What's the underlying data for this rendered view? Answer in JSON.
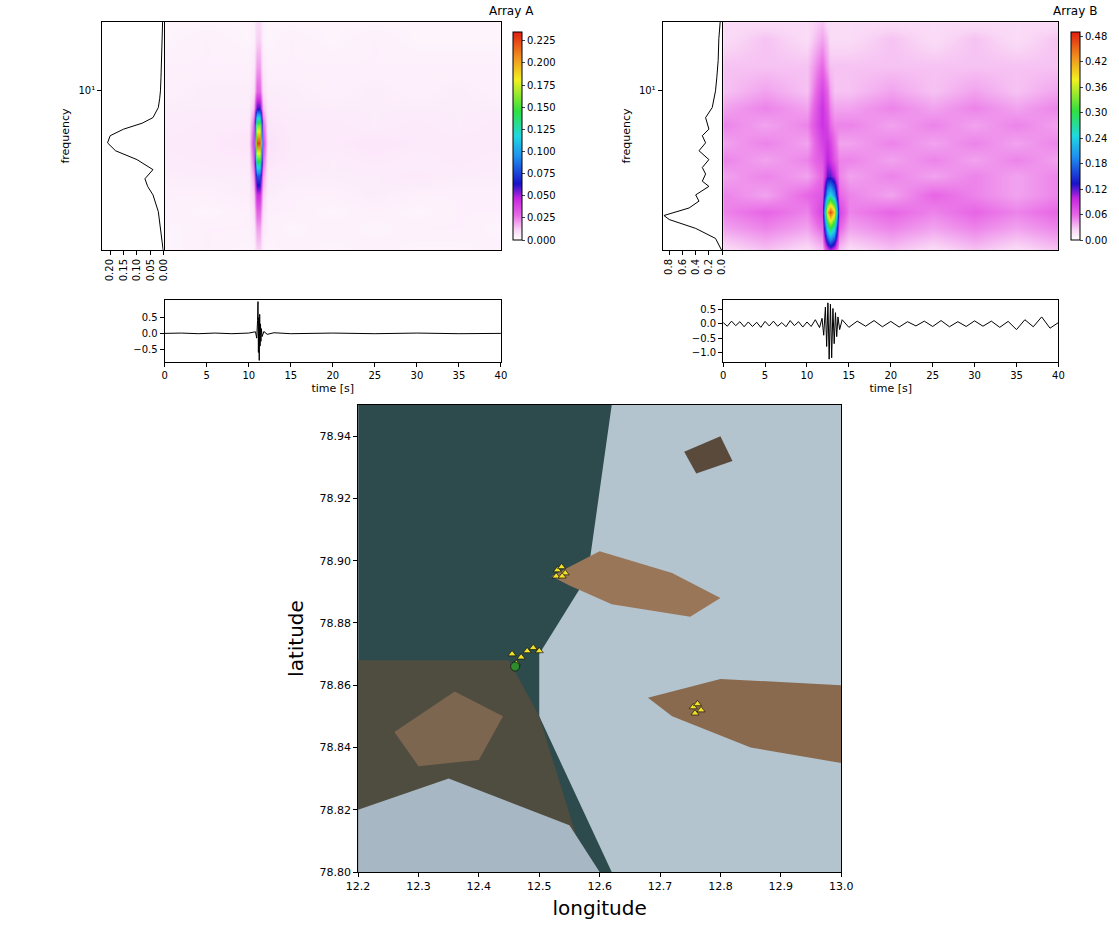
{
  "chart_data": [
    {
      "type": "spectrogram",
      "title": "Array A",
      "ylabel": "frequency",
      "log": "y",
      "ylim": [
        1.2,
        25
      ],
      "yticks": [
        {
          "value": 10,
          "label": "10¹"
        }
      ],
      "heatmap": {
        "x": [
          0,
          5,
          10,
          10.6,
          11,
          11.3,
          11.6,
          12.2,
          15,
          20,
          25,
          30,
          35,
          40
        ],
        "y": [
          1.2,
          1.6,
          2,
          2.5,
          3.2,
          4,
          5,
          6.3,
          8,
          10,
          14,
          20,
          25
        ],
        "z": [
          [
            0.003,
            0.004,
            0.003,
            0.004,
            0.012,
            0.012,
            0.004,
            0.003,
            0.004,
            0.003,
            0.004,
            0.003,
            0.003,
            0.004
          ],
          [
            0.003,
            0.004,
            0.004,
            0.006,
            0.02,
            0.02,
            0.006,
            0.004,
            0.003,
            0.004,
            0.003,
            0.004,
            0.004,
            0.003
          ],
          [
            0.004,
            0.003,
            0.004,
            0.008,
            0.03,
            0.03,
            0.008,
            0.004,
            0.004,
            0.003,
            0.004,
            0.003,
            0.004,
            0.004
          ],
          [
            0.004,
            0.004,
            0.005,
            0.012,
            0.045,
            0.045,
            0.012,
            0.005,
            0.004,
            0.004,
            0.005,
            0.004,
            0.004,
            0.004
          ],
          [
            0.005,
            0.005,
            0.005,
            0.02,
            0.08,
            0.08,
            0.02,
            0.006,
            0.005,
            0.005,
            0.005,
            0.006,
            0.005,
            0.005
          ],
          [
            0.005,
            0.006,
            0.006,
            0.03,
            0.15,
            0.15,
            0.03,
            0.007,
            0.006,
            0.005,
            0.006,
            0.005,
            0.006,
            0.005
          ],
          [
            0.006,
            0.006,
            0.007,
            0.04,
            0.225,
            0.225,
            0.04,
            0.008,
            0.006,
            0.006,
            0.007,
            0.006,
            0.006,
            0.006
          ],
          [
            0.005,
            0.006,
            0.006,
            0.03,
            0.16,
            0.16,
            0.03,
            0.007,
            0.006,
            0.006,
            0.005,
            0.006,
            0.005,
            0.006
          ],
          [
            0.005,
            0.005,
            0.005,
            0.015,
            0.06,
            0.06,
            0.015,
            0.006,
            0.005,
            0.005,
            0.005,
            0.005,
            0.005,
            0.005
          ],
          [
            0.004,
            0.005,
            0.005,
            0.008,
            0.03,
            0.03,
            0.008,
            0.005,
            0.005,
            0.004,
            0.005,
            0.004,
            0.005,
            0.004
          ],
          [
            0.004,
            0.004,
            0.004,
            0.006,
            0.02,
            0.02,
            0.006,
            0.004,
            0.004,
            0.004,
            0.004,
            0.004,
            0.004,
            0.004
          ],
          [
            0.003,
            0.004,
            0.003,
            0.004,
            0.012,
            0.012,
            0.004,
            0.003,
            0.004,
            0.003,
            0.004,
            0.003,
            0.003,
            0.003
          ],
          [
            0.003,
            0.003,
            0.003,
            0.004,
            0.01,
            0.01,
            0.004,
            0.003,
            0.003,
            0.003,
            0.003,
            0.003,
            0.003,
            0.003
          ]
        ],
        "zlim": [
          0,
          0.235
        ],
        "zticks": [
          {
            "value": 0,
            "label": "0.000"
          },
          0.025,
          {
            "value": 0.05,
            "label": "0.050"
          },
          0.075,
          {
            "value": 0.1,
            "label": "0.100"
          },
          0.125,
          {
            "value": 0.15,
            "label": "0.150"
          },
          0.175,
          {
            "value": 0.2,
            "label": "0.200"
          },
          0.225
        ]
      },
      "spectrum": {
        "type": "line",
        "color": "#000000",
        "x": [
          0.002,
          0.01,
          0.02,
          0.04,
          0.06,
          0.07,
          0.04,
          0.1,
          0.18,
          0.21,
          0.2,
          0.15,
          0.08,
          0.04,
          0.03,
          0.02,
          0.015,
          0.012,
          0.01,
          0.008,
          0.006,
          0.004
        ],
        "y": [
          1.2,
          1.5,
          2,
          2.5,
          2.8,
          3.1,
          3.5,
          4,
          4.5,
          5,
          5.5,
          6,
          6.5,
          7,
          7.5,
          8,
          9,
          10,
          12,
          15,
          20,
          25
        ],
        "xlim": [
          0.23,
          0
        ],
        "xticks": [
          {
            "value": 0.2,
            "label": "0.20"
          },
          0.15,
          {
            "value": 0.1,
            "label": "0.10"
          },
          0.05,
          {
            "value": 0,
            "label": "0.00"
          }
        ]
      },
      "waveform": {
        "type": "line",
        "color": "#000000",
        "xlabel": "time [s]",
        "x": [
          0,
          2,
          4,
          6,
          8,
          10,
          10.8,
          10.95,
          11.05,
          11.1,
          11.15,
          11.2,
          11.25,
          11.3,
          11.35,
          11.4,
          11.45,
          11.5,
          11.6,
          11.8,
          12.2,
          13,
          15,
          20,
          25,
          30,
          35,
          40
        ],
        "values": [
          0,
          0.01,
          -0.01,
          0.01,
          -0.01,
          0.01,
          0.05,
          -0.15,
          0.4,
          1.0,
          -0.6,
          0.5,
          -0.85,
          0.6,
          -0.4,
          0.3,
          -0.25,
          0.15,
          -0.1,
          0.06,
          -0.03,
          0.02,
          -0.01,
          0.01,
          -0.01,
          0.01,
          -0.01,
          0
        ],
        "xlim": [
          0,
          40
        ],
        "xticks": [
          0,
          5,
          10,
          15,
          20,
          25,
          30,
          35,
          40
        ],
        "ylim": [
          -0.9,
          1.05
        ],
        "yticks": [
          {
            "value": -0.5,
            "label": "−0.5"
          },
          {
            "value": 0,
            "label": "0.0"
          },
          0.5
        ]
      }
    },
    {
      "type": "spectrogram",
      "title": "Array B",
      "ylabel": "frequency",
      "log": "y",
      "ylim": [
        1.2,
        25
      ],
      "yticks": [
        {
          "value": 10,
          "label": "10¹"
        }
      ],
      "heatmap": {
        "x": [
          0,
          5,
          10,
          11.8,
          12.4,
          12.8,
          13.2,
          13.8,
          15,
          20,
          25,
          30,
          35,
          40
        ],
        "y": [
          1.2,
          1.6,
          2,
          2.5,
          3.2,
          4,
          5,
          6.3,
          8,
          10,
          14,
          20,
          25
        ],
        "z": [
          [
            0.02,
            0.03,
            0.02,
            0.03,
            0.08,
            0.1,
            0.08,
            0.03,
            0.02,
            0.03,
            0.02,
            0.03,
            0.02,
            0.03
          ],
          [
            0.04,
            0.05,
            0.04,
            0.06,
            0.25,
            0.3,
            0.25,
            0.06,
            0.04,
            0.05,
            0.04,
            0.05,
            0.04,
            0.05
          ],
          [
            0.05,
            0.06,
            0.05,
            0.08,
            0.4,
            0.47,
            0.4,
            0.08,
            0.05,
            0.06,
            0.05,
            0.06,
            0.05,
            0.06
          ],
          [
            0.05,
            0.04,
            0.06,
            0.07,
            0.22,
            0.25,
            0.2,
            0.06,
            0.05,
            0.04,
            0.06,
            0.05,
            0.04,
            0.05
          ],
          [
            0.04,
            0.05,
            0.04,
            0.06,
            0.12,
            0.12,
            0.1,
            0.05,
            0.04,
            0.05,
            0.04,
            0.05,
            0.04,
            0.05
          ],
          [
            0.05,
            0.04,
            0.05,
            0.07,
            0.1,
            0.09,
            0.07,
            0.05,
            0.05,
            0.04,
            0.05,
            0.04,
            0.05,
            0.04
          ],
          [
            0.04,
            0.05,
            0.04,
            0.08,
            0.09,
            0.08,
            0.06,
            0.04,
            0.04,
            0.05,
            0.04,
            0.05,
            0.04,
            0.05
          ],
          [
            0.05,
            0.04,
            0.05,
            0.09,
            0.08,
            0.06,
            0.05,
            0.05,
            0.05,
            0.04,
            0.05,
            0.04,
            0.05,
            0.04
          ],
          [
            0.04,
            0.05,
            0.04,
            0.09,
            0.07,
            0.05,
            0.04,
            0.04,
            0.04,
            0.05,
            0.04,
            0.05,
            0.04,
            0.05
          ],
          [
            0.03,
            0.04,
            0.03,
            0.08,
            0.06,
            0.04,
            0.03,
            0.03,
            0.03,
            0.04,
            0.03,
            0.04,
            0.03,
            0.04
          ],
          [
            0.03,
            0.03,
            0.03,
            0.06,
            0.04,
            0.03,
            0.03,
            0.03,
            0.03,
            0.03,
            0.03,
            0.03,
            0.03,
            0.03
          ],
          [
            0.02,
            0.03,
            0.02,
            0.04,
            0.03,
            0.02,
            0.02,
            0.02,
            0.02,
            0.03,
            0.02,
            0.03,
            0.02,
            0.03
          ],
          [
            0.02,
            0.02,
            0.02,
            0.03,
            0.02,
            0.02,
            0.02,
            0.02,
            0.02,
            0.02,
            0.02,
            0.02,
            0.02,
            0.02
          ]
        ],
        "zlim": [
          0,
          0.49
        ],
        "zticks": [
          {
            "value": 0,
            "label": "0.00"
          },
          0.06,
          0.12,
          0.18,
          0.24,
          {
            "value": 0.3,
            "label": "0.30"
          },
          0.36,
          0.42,
          0.48
        ]
      },
      "spectrum": {
        "type": "line",
        "color": "#000000",
        "x": [
          0.01,
          0.1,
          0.4,
          0.8,
          0.88,
          0.7,
          0.5,
          0.35,
          0.4,
          0.2,
          0.3,
          0.25,
          0.3,
          0.2,
          0.35,
          0.25,
          0.3,
          0.2,
          0.25,
          0.15,
          0.12,
          0.1,
          0.08,
          0.06,
          0.05,
          0.03
        ],
        "y": [
          1.2,
          1.4,
          1.6,
          1.8,
          1.9,
          2,
          2.1,
          2.3,
          2.5,
          2.8,
          3,
          3.3,
          3.6,
          4,
          4.5,
          5,
          5.5,
          6,
          7,
          8,
          9,
          10,
          12,
          15,
          20,
          25
        ],
        "xlim": [
          0.9,
          0
        ],
        "xticks": [
          0.8,
          0.6,
          0.4,
          0.2,
          {
            "value": 0,
            "label": "0.0"
          }
        ]
      },
      "waveform": {
        "type": "line",
        "color": "#000000",
        "xlabel": "time [s]",
        "x": [
          0,
          0.5,
          1,
          1.5,
          2,
          2.5,
          3,
          3.5,
          4,
          4.5,
          5,
          5.5,
          6,
          6.5,
          7,
          7.5,
          8,
          8.5,
          9,
          9.5,
          10,
          10.5,
          11,
          11.5,
          11.8,
          12.0,
          12.2,
          12.35,
          12.5,
          12.65,
          12.8,
          12.95,
          13.1,
          13.25,
          13.4,
          13.55,
          13.7,
          13.9,
          14.2,
          15,
          16,
          17,
          18,
          19,
          20,
          21,
          22,
          23,
          24,
          25,
          26,
          27,
          28,
          29,
          30,
          31,
          32,
          33,
          34,
          35,
          36,
          37,
          38,
          39,
          40
        ],
        "values": [
          0.05,
          -0.08,
          0.1,
          -0.06,
          0.08,
          -0.1,
          0.07,
          -0.09,
          0.06,
          -0.12,
          0.09,
          -0.07,
          0.1,
          -0.08,
          0.05,
          -0.1,
          0.12,
          -0.06,
          0.08,
          -0.11,
          0.07,
          -0.09,
          0.15,
          -0.13,
          0.2,
          -0.4,
          0.6,
          -0.8,
          0.75,
          -1.25,
          0.7,
          -1.2,
          0.55,
          -0.7,
          0.4,
          -0.45,
          0.25,
          -0.2,
          0.15,
          -0.12,
          0.1,
          -0.08,
          0.12,
          -0.1,
          0.09,
          -0.11,
          0.08,
          -0.07,
          0.1,
          -0.09,
          0.12,
          -0.1,
          0.08,
          -0.09,
          0.11,
          -0.08,
          0.1,
          -0.12,
          0.09,
          -0.2,
          0.15,
          -0.1,
          0.25,
          -0.15,
          0.05
        ],
        "xlim": [
          0,
          40
        ],
        "xticks": [
          0,
          5,
          10,
          15,
          20,
          25,
          30,
          35,
          40
        ],
        "ylim": [
          -1.35,
          0.85
        ],
        "yticks": [
          {
            "value": -1,
            "label": "−1.0"
          },
          {
            "value": -0.5,
            "label": "−0.5"
          },
          {
            "value": 0,
            "label": "0.0"
          },
          0.5
        ]
      }
    },
    {
      "type": "scatter",
      "xlabel": "longitude",
      "ylabel": "latitude",
      "xlim": [
        12.2,
        13.0
      ],
      "ylim": [
        78.8,
        78.95
      ],
      "xticks": [
        12.2,
        12.3,
        12.4,
        12.5,
        12.6,
        12.7,
        12.8,
        12.9,
        {
          "value": 13,
          "label": "13.0"
        }
      ],
      "yticks": [
        {
          "value": 78.8,
          "label": "78.80"
        },
        78.82,
        78.84,
        78.86,
        78.88,
        {
          "value": 78.9,
          "label": "78.90"
        },
        78.92,
        78.94
      ],
      "series": [
        {
          "marker": "triangle-up",
          "color": "#f2e229",
          "x": [
            12.53,
            12.537,
            12.543,
            12.528,
            12.538,
            12.455,
            12.47,
            12.48,
            12.462,
            12.49,
            12.5,
            12.755,
            12.762,
            12.768,
            12.758
          ],
          "values": [
            78.897,
            78.898,
            78.896,
            78.895,
            78.895,
            78.87,
            78.869,
            78.871,
            78.867,
            78.872,
            78.871,
            78.853,
            78.854,
            78.852,
            78.851
          ]
        },
        {
          "marker": "circle",
          "color": "#2e8b2e",
          "x": [
            12.46
          ],
          "values": [
            78.866
          ]
        }
      ]
    }
  ]
}
